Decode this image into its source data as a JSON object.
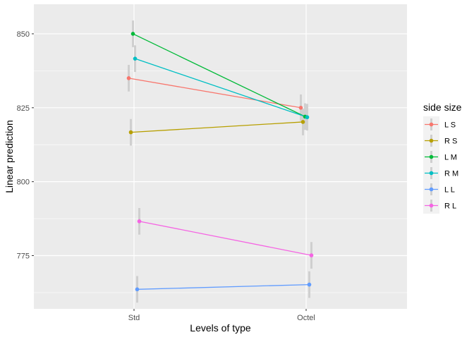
{
  "chart_data": {
    "type": "line",
    "xlabel": "Levels of type",
    "ylabel": "Linear prediction",
    "categories": [
      "Std",
      "Octel"
    ],
    "ylim": [
      757,
      860
    ],
    "yticks": [
      775,
      800,
      825,
      850
    ],
    "grid": true,
    "legend": {
      "title": "side size",
      "placement": "right"
    },
    "error_bars": true,
    "series": [
      {
        "name": "L S",
        "color": "#F8766D",
        "values": [
          835,
          825
        ],
        "ci": [
          [
            830.5,
            839.5
          ],
          [
            820.5,
            829.5
          ]
        ]
      },
      {
        "name": "R S",
        "color": "#B79F00",
        "values": [
          816.7,
          820.2
        ],
        "ci": [
          [
            812.2,
            821.2
          ],
          [
            815.7,
            824.7
          ]
        ]
      },
      {
        "name": "L M",
        "color": "#00BA38",
        "values": [
          850,
          822
        ],
        "ci": [
          [
            845.5,
            854.5
          ],
          [
            817.5,
            826.5
          ]
        ]
      },
      {
        "name": "R M",
        "color": "#00BFC4",
        "values": [
          841.6,
          821.8
        ],
        "ci": [
          [
            837.1,
            846.1
          ],
          [
            817.3,
            826.3
          ]
        ]
      },
      {
        "name": "L L",
        "color": "#619CFF",
        "values": [
          763.6,
          765.2
        ],
        "ci": [
          [
            759.1,
            768.1
          ],
          [
            760.7,
            769.7
          ]
        ]
      },
      {
        "name": "R L",
        "color": "#F564E3",
        "values": [
          786.6,
          775.1
        ],
        "ci": [
          [
            782.1,
            791.1
          ],
          [
            770.6,
            779.6
          ]
        ]
      }
    ]
  }
}
